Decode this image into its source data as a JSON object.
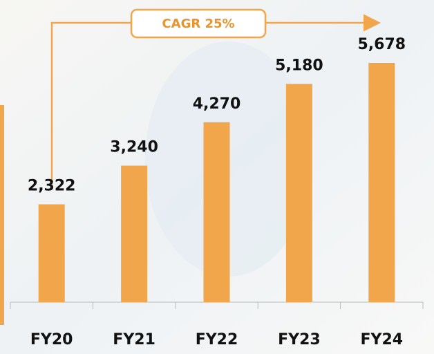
{
  "chart_data": {
    "type": "bar",
    "annotation": "CAGR 25%",
    "categories": [
      "FY20",
      "FY21",
      "FY22",
      "FY23",
      "FY24"
    ],
    "values": [
      2322,
      3240,
      4270,
      5180,
      5678
    ],
    "value_labels": [
      "2,322",
      "3,240",
      "4,270",
      "5,180",
      "5,678"
    ],
    "color": "#f2a64c"
  }
}
